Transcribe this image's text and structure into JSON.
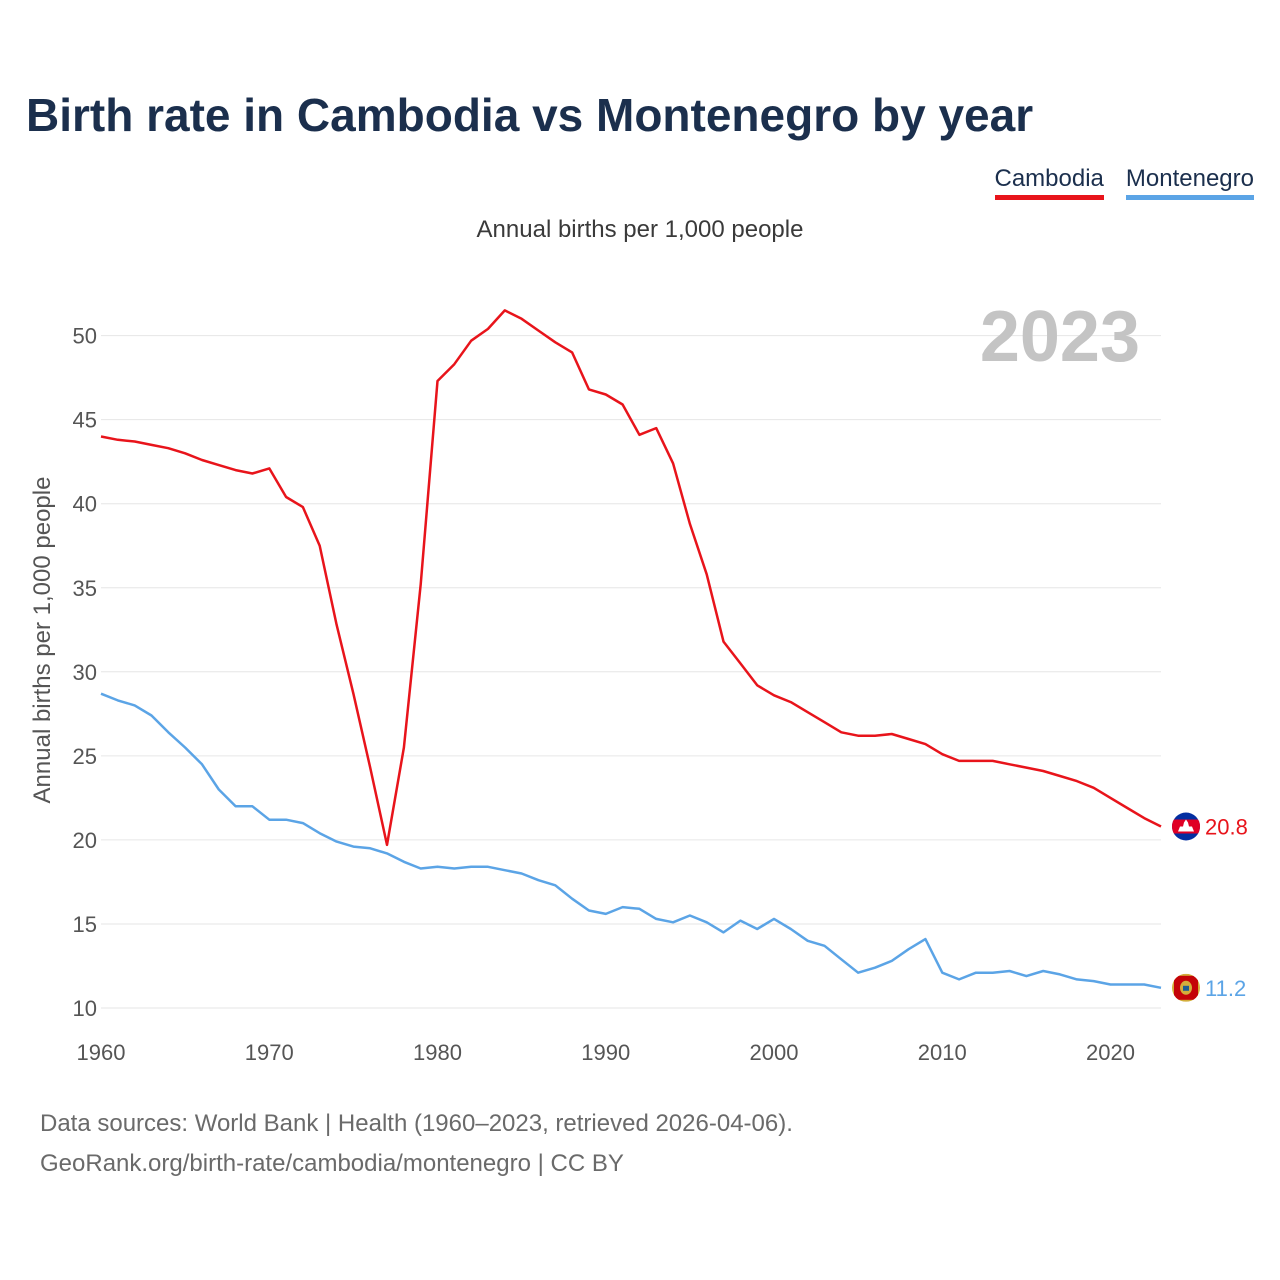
{
  "chart_data": {
    "type": "line",
    "title": "Birth rate in Cambodia vs Montenegro by year",
    "subtitle": "Annual births per 1,000 people",
    "ylabel": "Annual births per 1,000 people",
    "year_label": "2023",
    "xlim": [
      1960,
      2023
    ],
    "ylim": [
      10,
      52
    ],
    "x_ticks": [
      1960,
      1970,
      1980,
      1990,
      2000,
      2010,
      2020
    ],
    "y_ticks": [
      10,
      15,
      20,
      25,
      30,
      35,
      40,
      45,
      50
    ],
    "x": [
      1960,
      1961,
      1962,
      1963,
      1964,
      1965,
      1966,
      1967,
      1968,
      1969,
      1970,
      1971,
      1972,
      1973,
      1974,
      1975,
      1976,
      1977,
      1978,
      1979,
      1980,
      1981,
      1982,
      1983,
      1984,
      1985,
      1986,
      1987,
      1988,
      1989,
      1990,
      1991,
      1992,
      1993,
      1994,
      1995,
      1996,
      1997,
      1998,
      1999,
      2000,
      2001,
      2002,
      2003,
      2004,
      2005,
      2006,
      2007,
      2008,
      2009,
      2010,
      2011,
      2012,
      2013,
      2014,
      2015,
      2016,
      2017,
      2018,
      2019,
      2020,
      2021,
      2022,
      2023
    ],
    "series": [
      {
        "name": "Cambodia",
        "color": "#e8141b",
        "end_label": "20.8",
        "flag": "cambodia-flag-icon",
        "values": [
          44.0,
          43.8,
          43.7,
          43.5,
          43.3,
          43.0,
          42.6,
          42.3,
          42.0,
          41.8,
          42.1,
          40.4,
          39.8,
          37.5,
          32.8,
          28.7,
          24.3,
          19.7,
          25.5,
          35.2,
          47.3,
          48.3,
          49.7,
          50.4,
          51.5,
          51.0,
          50.3,
          49.6,
          49.0,
          46.8,
          46.5,
          45.9,
          44.1,
          44.5,
          42.4,
          38.8,
          35.8,
          31.8,
          30.5,
          29.2,
          28.6,
          28.2,
          27.6,
          27.0,
          26.4,
          26.2,
          26.2,
          26.3,
          26.0,
          25.7,
          25.1,
          24.7,
          24.7,
          24.7,
          24.5,
          24.3,
          24.1,
          23.8,
          23.5,
          23.1,
          22.5,
          21.9,
          21.3,
          20.8
        ]
      },
      {
        "name": "Montenegro",
        "color": "#5ba4e6",
        "end_label": "11.2",
        "flag": "montenegro-flag-icon",
        "values": [
          28.7,
          28.3,
          28.0,
          27.4,
          26.4,
          25.5,
          24.5,
          23.0,
          22.0,
          22.0,
          21.2,
          21.2,
          21.0,
          20.4,
          19.9,
          19.6,
          19.5,
          19.2,
          18.7,
          18.3,
          18.4,
          18.3,
          18.4,
          18.4,
          18.2,
          18.0,
          17.6,
          17.3,
          16.5,
          15.8,
          15.6,
          16.0,
          15.9,
          15.3,
          15.1,
          15.5,
          15.1,
          14.5,
          15.2,
          14.7,
          15.3,
          14.7,
          14.0,
          13.7,
          12.9,
          12.1,
          12.4,
          12.8,
          13.5,
          14.1,
          12.1,
          11.7,
          12.1,
          12.1,
          12.2,
          11.9,
          12.2,
          12.0,
          11.7,
          11.6,
          11.4,
          11.4,
          11.4,
          11.2
        ]
      }
    ]
  },
  "source": {
    "line1": "Data sources: World Bank | Health (1960–2023, retrieved 2026-04-06).",
    "line2": "GeoRank.org/birth-rate/cambodia/montenegro | CC BY"
  }
}
